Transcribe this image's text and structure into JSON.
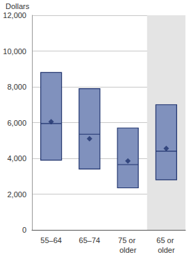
{
  "chart_data": {
    "type": "box",
    "ylabel": "Dollars",
    "categories": [
      "55–64",
      "65–74",
      "75 or older",
      "65 or older"
    ],
    "lower": [
      3900,
      3400,
      2350,
      2800
    ],
    "median": [
      5950,
      5350,
      3650,
      4400
    ],
    "upper": [
      8800,
      7900,
      5700,
      7000
    ],
    "mean": [
      6050,
      5100,
      3850,
      4550
    ],
    "color": "#8091bd",
    "highlight": "65 or older",
    "ylim": [
      0,
      12000
    ],
    "yticks": [
      0,
      {
        "value": 2000,
        "label": "2,000"
      },
      {
        "value": 4000,
        "label": "4,000"
      },
      {
        "value": 6000,
        "label": "6,000"
      },
      {
        "value": 8000,
        "label": "8,000"
      },
      {
        "value": 10000,
        "label": "10,000"
      },
      {
        "value": 12000,
        "label": "12,000"
      }
    ],
    "grid": true,
    "marker": "diamond"
  }
}
